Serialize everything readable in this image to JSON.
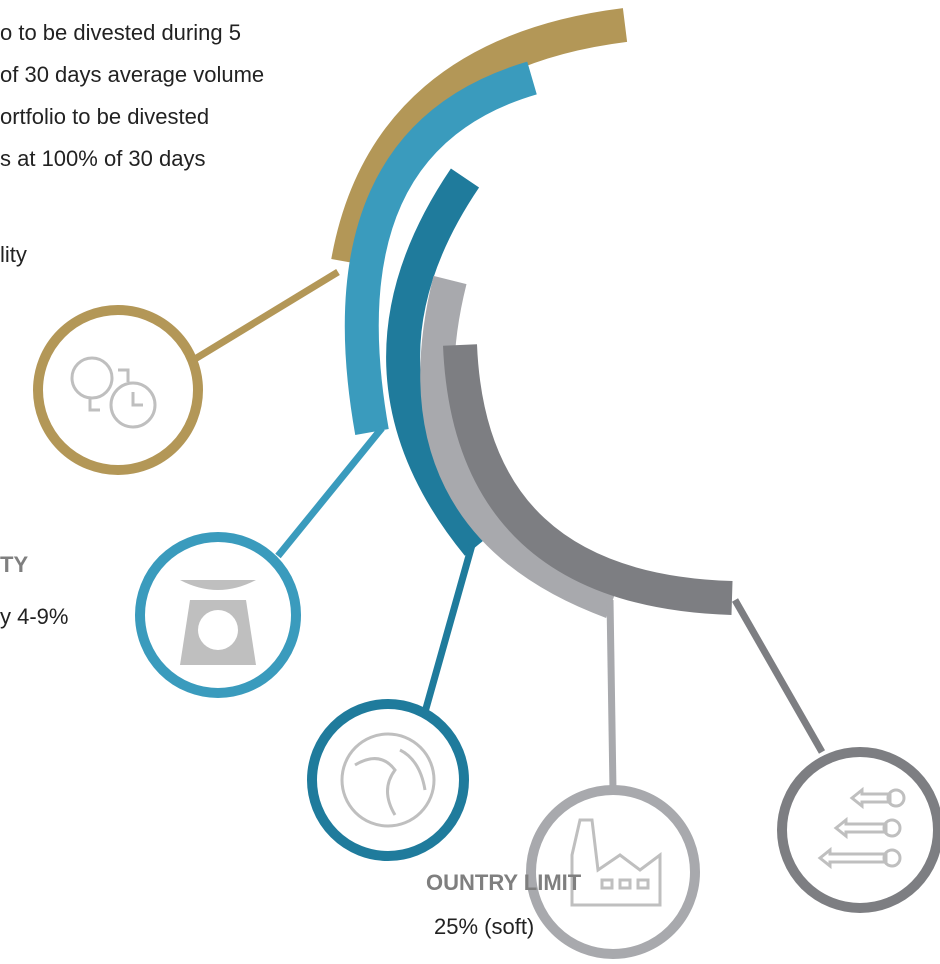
{
  "liquidity": {
    "lines": [
      "o to be divested during 5",
      "of 30 days average volume",
      "ortfolio to be divested",
      "s at 100% of 30 days",
      "lity"
    ]
  },
  "volatility": {
    "title": "TY",
    "text": "y 4-9%"
  },
  "country": {
    "title": "OUNTRY LIMIT",
    "text": "25% (soft)"
  }
}
